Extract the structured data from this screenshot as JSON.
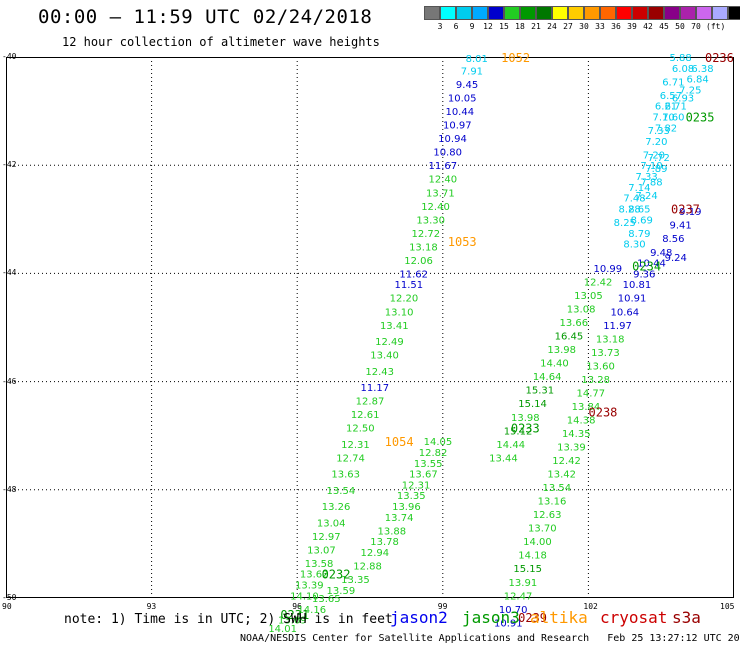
{
  "header": {
    "title": "00:00 – 11:59 UTC 02/24/2018",
    "subtitle": "12 hour collection of altimeter wave heights"
  },
  "colorbar": {
    "colors": [
      "#777777",
      "#00ffff",
      "#00ccee",
      "#00aaff",
      "#0000cc",
      "#22cc22",
      "#009900",
      "#007700",
      "#ffff00",
      "#ffcc00",
      "#ff9900",
      "#ff6600",
      "#ff0000",
      "#cc0000",
      "#990000",
      "#880088",
      "#aa22aa",
      "#cc66ee",
      "#aaaaff",
      "#000000"
    ],
    "labels": [
      "3",
      "6",
      "9",
      "12",
      "15",
      "18",
      "21",
      "24",
      "27",
      "30",
      "33",
      "36",
      "39",
      "42",
      "45",
      "50",
      "70",
      "(ft)"
    ]
  },
  "map": {
    "lon_ticks": [
      "90",
      "93",
      "96",
      "99",
      "102",
      "105"
    ],
    "lat_ticks": [
      "-40",
      "-42",
      "-44",
      "-46",
      "-48",
      "-50"
    ]
  },
  "tracks": [
    {
      "label": "1052",
      "label_color": "#ff9900",
      "label_lon": 100.5,
      "label_lat": -40.0,
      "points": [
        [
          99.7,
          -40.02,
          "8.01",
          "#00ccee"
        ],
        [
          99.6,
          -40.25,
          "7.91",
          "#00ccee"
        ],
        [
          99.5,
          -40.5,
          "9.45",
          "#0000cc"
        ],
        [
          99.4,
          -40.75,
          "10.05",
          "#0000cc"
        ],
        [
          99.35,
          -41.0,
          "10.44",
          "#0000cc"
        ],
        [
          99.3,
          -41.25,
          "10.97",
          "#0000cc"
        ],
        [
          99.2,
          -41.5,
          "10.94",
          "#0000cc"
        ],
        [
          99.1,
          -41.75,
          "10.80",
          "#0000cc"
        ],
        [
          99.0,
          -42.0,
          "11.67",
          "#0000cc"
        ]
      ]
    },
    {
      "label": "1053",
      "label_color": "#ff9900",
      "label_lon": 99.4,
      "label_lat": -43.4,
      "points": [
        [
          99.0,
          -42.25,
          "12.40",
          "#22cc22"
        ],
        [
          98.95,
          -42.5,
          "13.71",
          "#22cc22"
        ],
        [
          98.85,
          -42.75,
          "12.40",
          "#22cc22"
        ],
        [
          98.75,
          -43.0,
          "13.30",
          "#22cc22"
        ],
        [
          98.65,
          -43.25,
          "12.72",
          "#22cc22"
        ],
        [
          98.6,
          -43.5,
          "13.18",
          "#22cc22"
        ],
        [
          98.5,
          -43.75,
          "12.06",
          "#22cc22"
        ],
        [
          98.4,
          -44.0,
          "11.62",
          "#0000cc"
        ],
        [
          98.3,
          -44.2,
          "11.51",
          "#0000cc"
        ],
        [
          98.2,
          -44.45,
          "12.20",
          "#22cc22"
        ],
        [
          98.1,
          -44.7,
          "13.10",
          "#22cc22"
        ],
        [
          98.0,
          -44.95,
          "13.41",
          "#22cc22"
        ],
        [
          97.9,
          -45.25,
          "12.49",
          "#22cc22"
        ],
        [
          97.8,
          -45.5,
          "13.40",
          "#22cc22"
        ],
        [
          97.7,
          -45.8,
          "12.43",
          "#22cc22"
        ],
        [
          97.6,
          -46.1,
          "11.17",
          "#0000cc"
        ],
        [
          97.5,
          -46.35,
          "12.87",
          "#22cc22"
        ],
        [
          97.4,
          -46.6,
          "12.61",
          "#22cc22"
        ],
        [
          97.3,
          -46.85,
          "12.50",
          "#22cc22"
        ],
        [
          97.2,
          -47.15,
          "12.31",
          "#22cc22"
        ],
        [
          97.1,
          -47.4,
          "12.74",
          "#22cc22"
        ],
        [
          97.0,
          -47.7,
          "13.63",
          "#22cc22"
        ],
        [
          96.9,
          -48.0,
          "13.54",
          "#22cc22"
        ],
        [
          96.8,
          -48.3,
          "13.26",
          "#22cc22"
        ],
        [
          96.7,
          -48.6,
          "13.04",
          "#22cc22"
        ],
        [
          96.6,
          -48.85,
          "12.97",
          "#22cc22"
        ],
        [
          96.5,
          -49.1,
          "13.07",
          "#22cc22"
        ],
        [
          96.45,
          -49.35,
          "13.58",
          "#22cc22"
        ],
        [
          96.35,
          -49.55,
          "13.62",
          "#22cc22"
        ],
        [
          96.25,
          -49.75,
          "13.39",
          "#22cc22"
        ],
        [
          96.15,
          -49.95,
          "14.10",
          "#22cc22"
        ]
      ]
    },
    {
      "label": "1054",
      "label_color": "#ff9900",
      "label_lon": 98.1,
      "label_lat": -47.1,
      "points": [
        [
          98.9,
          -47.1,
          "14.05",
          "#22cc22"
        ],
        [
          98.8,
          -47.3,
          "12.82",
          "#22cc22"
        ],
        [
          98.7,
          -47.5,
          "13.55",
          "#22cc22"
        ],
        [
          98.6,
          -47.7,
          "13.67",
          "#22cc22"
        ],
        [
          98.45,
          -47.9,
          "12.31",
          "#22cc22"
        ],
        [
          98.35,
          -48.1,
          "13.35",
          "#22cc22"
        ],
        [
          98.25,
          -48.3,
          "13.96",
          "#22cc22"
        ],
        [
          98.1,
          -48.5,
          "13.74",
          "#22cc22"
        ],
        [
          97.95,
          -48.75,
          "13.88",
          "#22cc22"
        ],
        [
          97.8,
          -48.95,
          "13.78",
          "#22cc22"
        ],
        [
          97.6,
          -49.15,
          "12.94",
          "#22cc22"
        ],
        [
          97.45,
          -49.4,
          "12.88",
          "#22cc22"
        ],
        [
          97.2,
          -49.65,
          "13.35",
          "#22cc22"
        ],
        [
          96.9,
          -49.85,
          "13.59",
          "#22cc22"
        ],
        [
          96.6,
          -50.0,
          "13.65",
          "#22cc22"
        ],
        [
          96.3,
          -50.2,
          "14.16",
          "#22cc22"
        ],
        [
          95.9,
          -50.4,
          "13.69",
          "#22cc22"
        ],
        [
          95.7,
          -50.55,
          "14.01",
          "#22cc22"
        ]
      ]
    },
    {
      "label": "0233",
      "label_color": "#009900",
      "label_lon": 100.7,
      "label_lat": -46.85,
      "points": [
        [
          102.4,
          -43.9,
          "10.99",
          "#0000cc"
        ],
        [
          102.2,
          -44.15,
          "12.42",
          "#22cc22"
        ],
        [
          102.0,
          -44.4,
          "13.05",
          "#22cc22"
        ],
        [
          101.85,
          -44.65,
          "13.08",
          "#22cc22"
        ],
        [
          101.7,
          -44.9,
          "13.66",
          "#22cc22"
        ],
        [
          101.6,
          -45.15,
          "16.45",
          "#009900"
        ],
        [
          101.45,
          -45.4,
          "13.98",
          "#22cc22"
        ],
        [
          101.3,
          -45.65,
          "14.40",
          "#22cc22"
        ],
        [
          101.15,
          -45.9,
          "14.64",
          "#22cc22"
        ],
        [
          101.0,
          -46.15,
          "15.31",
          "#009900"
        ],
        [
          100.85,
          -46.4,
          "15.14",
          "#009900"
        ],
        [
          100.7,
          -46.65,
          "13.98",
          "#22cc22"
        ],
        [
          100.55,
          -46.9,
          "15.12",
          "#009900"
        ],
        [
          100.4,
          -47.15,
          "14.44",
          "#22cc22"
        ],
        [
          100.25,
          -47.4,
          "13.44",
          "#22cc22"
        ]
      ]
    },
    {
      "label": "0232",
      "label_color": "#009900",
      "label_lon": 96.8,
      "label_lat": -49.55,
      "points": []
    },
    {
      "label": "0231",
      "label_color": "#009900",
      "label_lon": 95.95,
      "label_lat": -50.3,
      "points": []
    },
    {
      "label": "0234",
      "label_color": "#009900",
      "label_lon": 103.2,
      "label_lat": -43.85,
      "points": [
        [
          104.1,
          -42.85,
          "9.19",
          "#0000cc"
        ],
        [
          103.9,
          -43.1,
          "9.41",
          "#0000cc"
        ],
        [
          103.75,
          -43.35,
          "8.56",
          "#0000cc"
        ],
        [
          103.5,
          -43.6,
          "9.48",
          "#0000cc"
        ],
        [
          103.3,
          -43.8,
          "10.44",
          "#0000cc"
        ],
        [
          103.15,
          -44.0,
          "9.36",
          "#0000cc"
        ],
        [
          103.0,
          -44.2,
          "10.81",
          "#0000cc"
        ],
        [
          102.9,
          -44.45,
          "10.91",
          "#0000cc"
        ],
        [
          102.75,
          -44.7,
          "10.64",
          "#0000cc"
        ],
        [
          102.6,
          -44.95,
          "11.97",
          "#0000cc"
        ],
        [
          102.45,
          -45.2,
          "13.18",
          "#22cc22"
        ],
        [
          102.35,
          -45.45,
          "13.73",
          "#22cc22"
        ],
        [
          102.25,
          -45.7,
          "13.60",
          "#22cc22"
        ],
        [
          102.15,
          -45.95,
          "13.28",
          "#22cc22"
        ],
        [
          102.05,
          -46.2,
          "14.77",
          "#22cc22"
        ],
        [
          101.95,
          -46.45,
          "13.84",
          "#22cc22"
        ],
        [
          101.85,
          -46.7,
          "14.38",
          "#22cc22"
        ],
        [
          101.75,
          -46.95,
          "14.35",
          "#22cc22"
        ],
        [
          101.65,
          -47.2,
          "13.39",
          "#22cc22"
        ],
        [
          101.55,
          -47.45,
          "12.42",
          "#22cc22"
        ],
        [
          101.45,
          -47.7,
          "13.42",
          "#22cc22"
        ],
        [
          101.35,
          -47.95,
          "13.54",
          "#22cc22"
        ],
        [
          101.25,
          -48.2,
          "13.16",
          "#22cc22"
        ],
        [
          101.15,
          -48.45,
          "12.63",
          "#22cc22"
        ],
        [
          101.05,
          -48.7,
          "13.70",
          "#22cc22"
        ],
        [
          100.95,
          -48.95,
          "14.00",
          "#22cc22"
        ],
        [
          100.85,
          -49.2,
          "14.18",
          "#22cc22"
        ],
        [
          100.75,
          -49.45,
          "15.15",
          "#009900"
        ],
        [
          100.65,
          -49.7,
          "13.91",
          "#22cc22"
        ],
        [
          100.55,
          -49.95,
          "12.47",
          "#22cc22"
        ],
        [
          100.45,
          -50.2,
          "10.70",
          "#0000cc"
        ],
        [
          100.35,
          -50.45,
          "10.91",
          "#0000cc"
        ]
      ]
    },
    {
      "label": "0235",
      "label_color": "#009900",
      "label_lon": 104.3,
      "label_lat": -41.1,
      "points": []
    },
    {
      "label": "0236",
      "label_color": "#990000",
      "label_lon": 104.7,
      "label_lat": -40.0,
      "points": [
        [
          103.9,
          -40.0,
          "5.88",
          "#00ccee"
        ],
        [
          103.95,
          -40.2,
          "6.08",
          "#00ccee"
        ],
        [
          104.35,
          -40.2,
          "6.38",
          "#00ccee"
        ],
        [
          104.25,
          -40.4,
          "6.84",
          "#00ccee"
        ],
        [
          103.75,
          -40.45,
          "6.71",
          "#00ccee"
        ],
        [
          104.1,
          -40.6,
          "7.25",
          "#00ccee"
        ],
        [
          103.7,
          -40.7,
          "6.57",
          "#00ccee"
        ],
        [
          103.95,
          -40.75,
          "6.93",
          "#00ccee"
        ],
        [
          103.6,
          -40.9,
          "6.21",
          "#00ccee"
        ],
        [
          103.8,
          -40.9,
          "6.71",
          "#00ccee"
        ],
        [
          103.55,
          -41.1,
          "7.10",
          "#00ccee"
        ],
        [
          103.75,
          -41.1,
          "7.60",
          "#00ccee"
        ],
        [
          103.6,
          -41.3,
          "7.82",
          "#00ccee"
        ],
        [
          103.45,
          -41.35,
          "7.33",
          "#00ccee"
        ],
        [
          103.4,
          -41.55,
          "7.20",
          "#00ccee"
        ],
        [
          103.35,
          -41.8,
          "7.20",
          "#00ccee"
        ],
        [
          103.45,
          -41.85,
          "7.72",
          "#00ccee"
        ],
        [
          103.3,
          -42.0,
          "7.10",
          "#00ccee"
        ],
        [
          103.4,
          -42.05,
          "7.89",
          "#00ccee"
        ],
        [
          103.2,
          -42.2,
          "7.33",
          "#00ccee"
        ],
        [
          103.3,
          -42.3,
          "7.88",
          "#00ccee"
        ],
        [
          103.05,
          -42.4,
          "7.14",
          "#00ccee"
        ],
        [
          102.95,
          -42.6,
          "7.48",
          "#00ccee"
        ],
        [
          103.2,
          -42.55,
          "7.24",
          "#00ccee"
        ],
        [
          102.85,
          -42.8,
          "8.28",
          "#00ccee"
        ],
        [
          103.05,
          -42.8,
          "8.65",
          "#00ccee"
        ],
        [
          103.1,
          -43.0,
          "8.69",
          "#00ccee"
        ],
        [
          102.75,
          -43.05,
          "8.25",
          "#00ccee"
        ],
        [
          103.05,
          -43.25,
          "8.79",
          "#00ccee"
        ],
        [
          102.95,
          -43.45,
          "8.30",
          "#00ccee"
        ]
      ]
    },
    {
      "label": "0237",
      "label_color": "#990000",
      "label_lon": 104.0,
      "label_lat": -42.8,
      "points": [
        [
          103.8,
          -43.7,
          "9.24",
          "#0000cc"
        ]
      ]
    },
    {
      "label": "0238",
      "label_color": "#990000",
      "label_lon": 102.3,
      "label_lat": -46.55,
      "points": []
    },
    {
      "label": "0239",
      "label_color": "#990000",
      "label_lon": 100.85,
      "label_lat": -50.35,
      "points": []
    }
  ],
  "footer": {
    "note": "note: 1) Time is in UTC; 2) SWH is in feet",
    "legend": [
      {
        "name": "jason2",
        "color": "#0000ee"
      },
      {
        "name": "jason3",
        "color": "#009900"
      },
      {
        "name": "altika",
        "color": "#ff9900"
      },
      {
        "name": "cryosat",
        "color": "#cc0000"
      },
      {
        "name": "s3a",
        "color": "#990000"
      }
    ],
    "credit": "NOAA/NESDIS Center for Satellite Applications and Research   Feb 25 13:27:12 UTC 2018"
  }
}
